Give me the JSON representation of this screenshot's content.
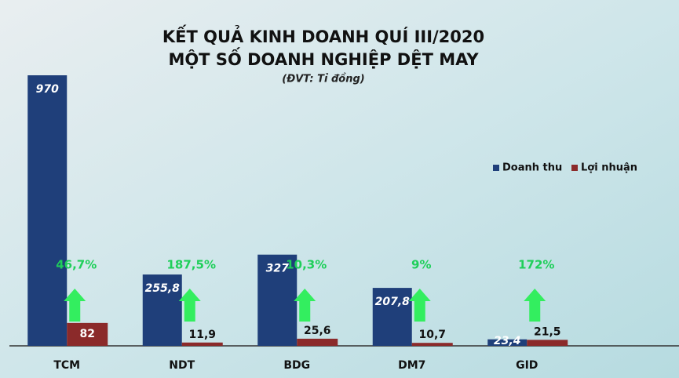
{
  "chart_data": {
    "type": "bar",
    "title": [
      "KẾT QUẢ KINH DOANH QUÍ III/2020",
      "MỘT SỐ DOANH NGHIỆP DỆT MAY"
    ],
    "subtitle": "(ĐVT: Tỉ đồng)",
    "categories": [
      "TCM",
      "NDT",
      "BDG",
      "DM7",
      "GID"
    ],
    "series": [
      {
        "name": "Doanh thu",
        "color": "#1f3f7a",
        "values": [
          970,
          255.8,
          327,
          207.8,
          23.4
        ],
        "value_labels": [
          "970",
          "255,8",
          "327",
          "207,8",
          "23,4"
        ]
      },
      {
        "name": "Lợi nhuận",
        "color": "#8b2a2a",
        "values": [
          82,
          11.9,
          25.6,
          10.7,
          21.5
        ],
        "value_labels": [
          "82",
          "11,9",
          "25,6",
          "10,7",
          "21,5"
        ]
      }
    ],
    "growth_labels": [
      "46,7%",
      "187,5%",
      "10,3%",
      "9%",
      "172%"
    ],
    "legend": "right"
  }
}
